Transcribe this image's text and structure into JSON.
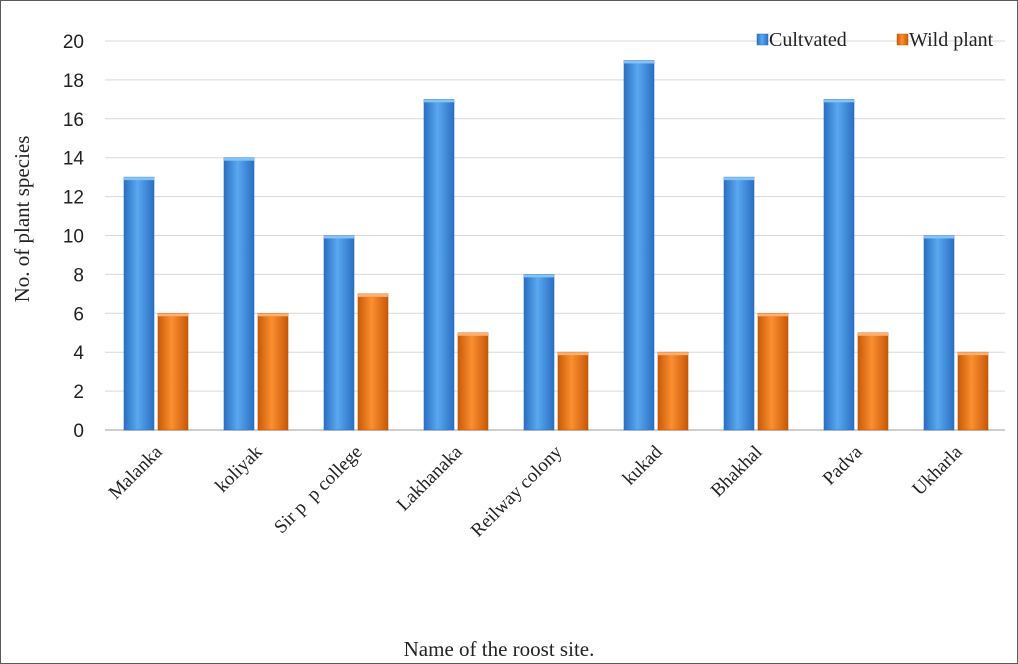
{
  "chart_data": {
    "type": "bar",
    "categories": [
      "Malanka",
      "koliyak",
      "Sir p  p college",
      "Lakhanaka",
      "Reilway colony",
      "kukad",
      "Bhakhal",
      "Padva",
      "Ukharla"
    ],
    "series": [
      {
        "name": "Cultvated",
        "values": [
          13,
          14,
          10,
          17,
          8,
          19,
          13,
          17,
          10
        ],
        "color": "#3f8ee0"
      },
      {
        "name": "Wild plant",
        "values": [
          6,
          6,
          7,
          5,
          4,
          4,
          6,
          5,
          4
        ],
        "color": "#f07a1c"
      }
    ],
    "xlabel": "Name of the roost site.",
    "ylabel": "No. of plant species",
    "ylim": [
      0,
      20
    ],
    "yticks": [
      0,
      2,
      4,
      6,
      8,
      10,
      12,
      14,
      16,
      18,
      20
    ],
    "grid": true,
    "legend_position": "top-right"
  }
}
